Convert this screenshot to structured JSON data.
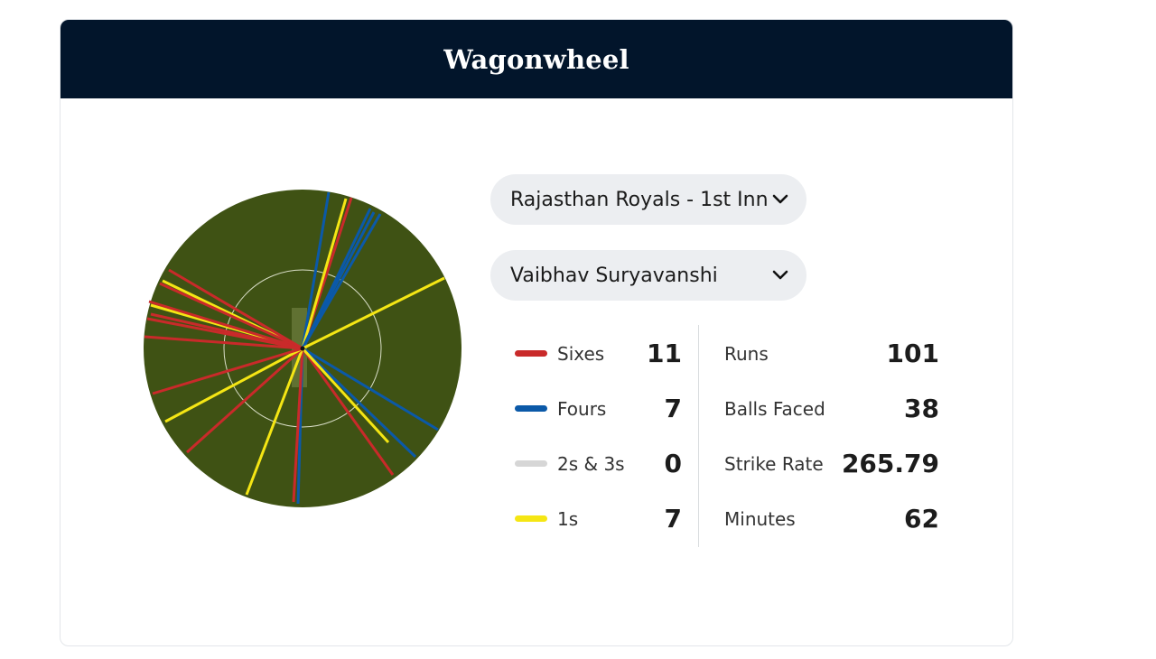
{
  "header": {
    "title": "Wagonwheel"
  },
  "filters": {
    "innings": "Rajasthan Royals - 1st Inn",
    "player": "Vaibhav Suryavanshi"
  },
  "legend": [
    {
      "label": "Sixes",
      "count": "11",
      "color": "#c92a2a"
    },
    {
      "label": "Fours",
      "count": "7",
      "color": "#0b59a8"
    },
    {
      "label": "2s & 3s",
      "count": "0",
      "color": "#d6d6d6"
    },
    {
      "label": "1s",
      "count": "7",
      "color": "#f5e614"
    }
  ],
  "stats": [
    {
      "label": "Runs",
      "value": "101"
    },
    {
      "label": "Balls Faced",
      "value": "38"
    },
    {
      "label": "Strike Rate",
      "value": "265.79"
    },
    {
      "label": "Minutes",
      "value": "62"
    }
  ],
  "wheel": {
    "field_color": "#3f5214",
    "pitch_color": "#6f7f3e",
    "inner_ring_color": "#d8ddc6"
  }
}
